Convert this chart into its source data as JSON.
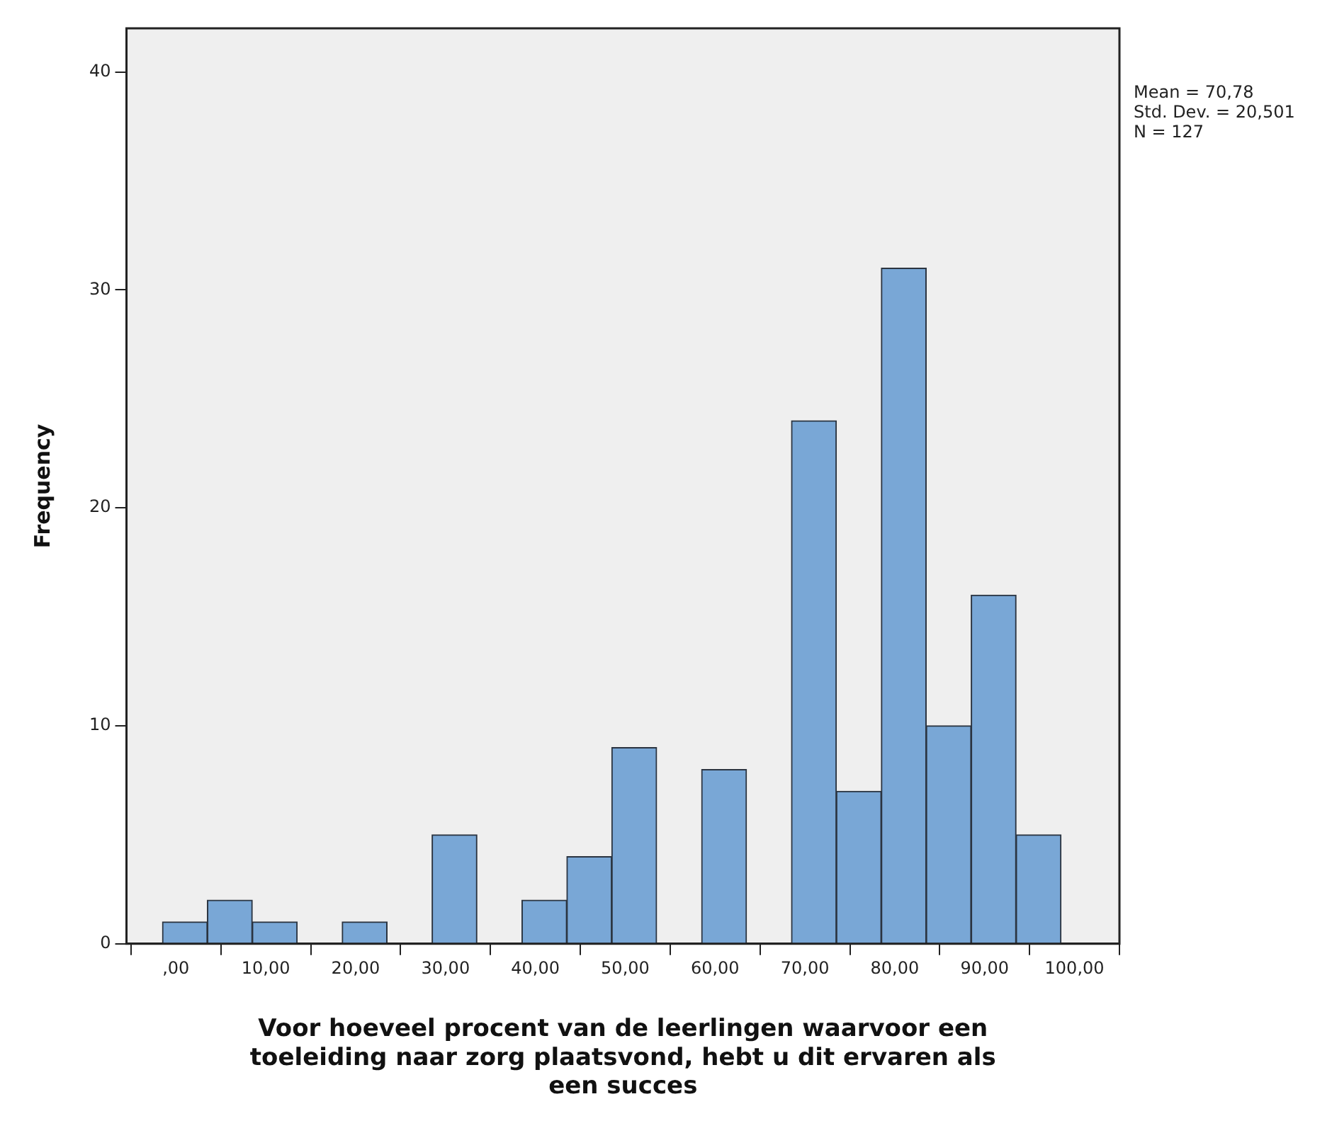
{
  "chart_data": {
    "type": "histogram",
    "xlabel": "Voor hoeveel procent van de leerlingen waarvoor een toeleiding naar zorg plaatsvond, hebt u dit ervaren als een succes",
    "ylabel": "Frequency",
    "bins": [
      -1.5,
      3.5,
      8.5,
      13.5,
      18.5,
      23.5,
      28.5,
      33.5,
      38.5,
      43.5,
      48.5,
      53.5,
      58.5,
      63.5,
      68.5,
      73.5,
      78.5,
      83.5,
      88.5,
      93.5,
      98.5
    ],
    "values": [
      1,
      2,
      1,
      0,
      1,
      0,
      5,
      0,
      2,
      4,
      9,
      0,
      8,
      0,
      24,
      7,
      31,
      10,
      16,
      5
    ],
    "color": "#79a7d6",
    "xlim": [
      -5.5,
      105
    ],
    "xticks": [
      {
        "value": 0,
        "label": ",00"
      },
      {
        "value": 10,
        "label": "10,00"
      },
      {
        "value": 20,
        "label": "20,00"
      },
      {
        "value": 30,
        "label": "30,00"
      },
      {
        "value": 40,
        "label": "40,00"
      },
      {
        "value": 50,
        "label": "50,00"
      },
      {
        "value": 60,
        "label": "60,00"
      },
      {
        "value": 70,
        "label": "70,00"
      },
      {
        "value": 80,
        "label": "80,00"
      },
      {
        "value": 90,
        "label": "90,00"
      },
      {
        "value": 100,
        "label": "100,00"
      }
    ],
    "ylim": [
      0,
      42
    ],
    "yticks": [
      0,
      10,
      20,
      30,
      40
    ],
    "grid": false,
    "annotations": [
      "Mean = 70,78",
      "Std. Dev. = 20,501",
      "N = 127"
    ]
  }
}
